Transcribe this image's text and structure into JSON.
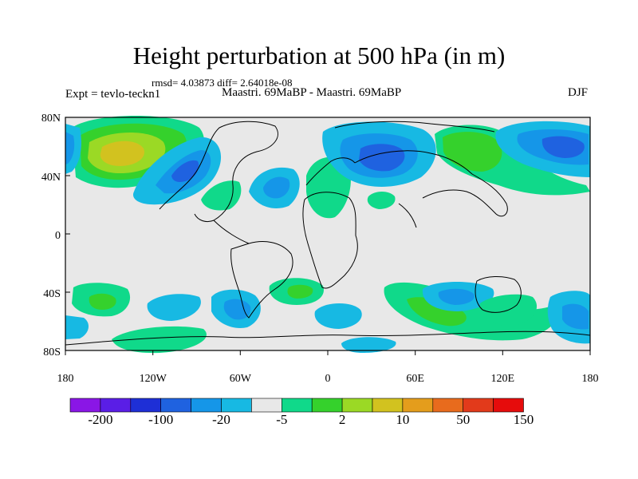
{
  "title": "Height perturbation at 500 hPa (in m)",
  "stats_line": "rmsd= 4.03873 diff= 2.64018e-08",
  "experiment": "Expt = tevlo-teckn1",
  "comparison": "Maastri.  69MaBP - Maastri.  69MaBP",
  "season": "DJF",
  "axes": {
    "lat_ticks": [
      "80N",
      "40N",
      "0",
      "40S",
      "80S"
    ],
    "lon_ticks": [
      "180",
      "120W",
      "60W",
      "0",
      "60E",
      "120E",
      "180"
    ]
  },
  "colorbar": {
    "labels": [
      "-200",
      "-100",
      "-20",
      "-5",
      "2",
      "10",
      "50",
      "150"
    ],
    "colors": [
      "#8a16e6",
      "#5a1ee6",
      "#1e2fd6",
      "#1f62e0",
      "#1596e8",
      "#17b9e3",
      "#e8e8e8",
      "#10d98a",
      "#35d12c",
      "#9bd925",
      "#d2c21f",
      "#e49d1c",
      "#e86b1d",
      "#e23a1b",
      "#e60c0c"
    ]
  },
  "colors": {
    "background": "#e8e8e8",
    "coastline": "#000000",
    "pos_light": "#10d98a",
    "pos_mid": "#35d12c",
    "pos_strong": "#9bd925",
    "pos_peak": "#d2c21f",
    "neg_light": "#17b9e3",
    "neg_mid": "#1596e8",
    "neg_strong": "#1f62e0"
  }
}
